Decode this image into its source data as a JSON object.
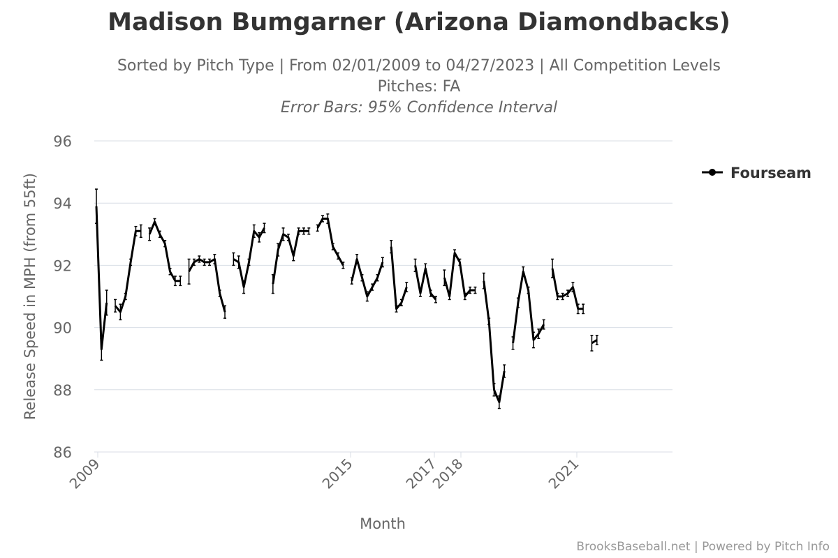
{
  "title": "Madison Bumgarner (Arizona Diamondbacks)",
  "subtitle_line1": "Sorted by Pitch Type | From 02/01/2009 to 04/27/2023 | All Competition Levels",
  "subtitle_line2": "Pitches: FA",
  "subtitle_line3": "Error Bars: 95% Confidence Interval",
  "credits": "BrooksBaseball.net | Powered by Pitch Info",
  "colors": {
    "line": "#000000",
    "grid": "#d8dee6",
    "axis_text": "#666666",
    "title": "#333333"
  },
  "chart_data": {
    "type": "line",
    "xlabel": "Month",
    "ylabel": "Release Speed in MPH (from 55ft)",
    "ylim": [
      86,
      96
    ],
    "yticks": [
      86,
      88,
      90,
      92,
      94,
      96
    ],
    "xticks": [
      "2009",
      "2015",
      "2017",
      "2018",
      "2021"
    ],
    "grid": true,
    "legend_position": "top-right",
    "series": [
      {
        "name": "Fourseam",
        "segments": [
          {
            "values": [
              [
                93.9,
                0.55
              ],
              [
                89.3,
                0.35
              ],
              [
                90.8,
                0.4
              ]
            ]
          },
          {
            "values": [
              [
                90.7,
                0.2
              ],
              [
                90.5,
                0.25
              ],
              [
                91.0,
                0.1
              ],
              [
                92.1,
                0.1
              ],
              [
                93.1,
                0.15
              ],
              [
                93.1,
                0.2
              ]
            ]
          },
          {
            "values": [
              [
                93.0,
                0.2
              ],
              [
                93.4,
                0.1
              ],
              [
                93.0,
                0.1
              ],
              [
                92.7,
                0.1
              ],
              [
                91.8,
                0.1
              ],
              [
                91.5,
                0.15
              ],
              [
                91.5,
                0.15
              ]
            ]
          },
          {
            "values": [
              [
                91.8,
                0.4
              ],
              [
                92.1,
                0.1
              ],
              [
                92.2,
                0.1
              ],
              [
                92.1,
                0.1
              ],
              [
                92.1,
                0.1
              ],
              [
                92.2,
                0.15
              ],
              [
                91.1,
                0.1
              ],
              [
                90.5,
                0.2
              ]
            ]
          },
          {
            "values": [
              [
                92.2,
                0.2
              ],
              [
                92.1,
                0.2
              ],
              [
                91.3,
                0.2
              ],
              [
                92.1,
                0.1
              ],
              [
                93.1,
                0.2
              ],
              [
                92.9,
                0.15
              ],
              [
                93.2,
                0.15
              ]
            ]
          },
          {
            "values": [
              [
                91.4,
                0.3
              ],
              [
                92.5,
                0.2
              ],
              [
                93.0,
                0.2
              ],
              [
                92.9,
                0.1
              ],
              [
                92.3,
                0.15
              ],
              [
                93.1,
                0.1
              ],
              [
                93.1,
                0.1
              ],
              [
                93.1,
                0.1
              ]
            ]
          },
          {
            "values": [
              [
                93.2,
                0.1
              ],
              [
                93.5,
                0.1
              ],
              [
                93.5,
                0.15
              ],
              [
                92.6,
                0.1
              ],
              [
                92.3,
                0.1
              ],
              [
                92.0,
                0.1
              ]
            ]
          },
          {
            "values": [
              [
                91.5,
                0.1
              ],
              [
                92.2,
                0.15
              ],
              [
                91.6,
                0.1
              ],
              [
                91.0,
                0.15
              ],
              [
                91.3,
                0.1
              ],
              [
                91.6,
                0.1
              ],
              [
                92.1,
                0.15
              ]
            ]
          },
          {
            "values": [
              [
                92.6,
                0.2
              ],
              [
                90.6,
                0.1
              ],
              [
                90.8,
                0.1
              ],
              [
                91.3,
                0.15
              ]
            ]
          },
          {
            "values": [
              [
                92.0,
                0.2
              ],
              [
                91.1,
                0.1
              ],
              [
                91.9,
                0.15
              ],
              [
                91.1,
                0.1
              ],
              [
                90.9,
                0.1
              ]
            ]
          },
          {
            "values": [
              [
                91.6,
                0.25
              ],
              [
                91.0,
                0.1
              ],
              [
                92.4,
                0.1
              ],
              [
                92.1,
                0.1
              ],
              [
                91.0,
                0.1
              ],
              [
                91.2,
                0.1
              ],
              [
                91.2,
                0.1
              ]
            ]
          },
          {
            "values": [
              [
                91.5,
                0.25
              ],
              [
                90.2,
                0.1
              ],
              [
                88.0,
                0.2
              ],
              [
                87.6,
                0.2
              ],
              [
                88.6,
                0.2
              ]
            ]
          },
          {
            "values": [
              [
                89.5,
                0.2
              ],
              [
                90.8,
                0.15
              ],
              [
                91.8,
                0.15
              ],
              [
                91.2,
                0.1
              ],
              [
                89.6,
                0.25
              ],
              [
                89.8,
                0.15
              ],
              [
                90.1,
                0.15
              ]
            ]
          },
          {
            "values": [
              [
                91.9,
                0.3
              ],
              [
                91.0,
                0.1
              ],
              [
                91.0,
                0.1
              ],
              [
                91.1,
                0.1
              ],
              [
                91.3,
                0.15
              ],
              [
                90.6,
                0.15
              ],
              [
                90.6,
                0.15
              ]
            ]
          },
          {
            "values": [
              [
                89.5,
                0.25
              ],
              [
                89.6,
                0.15
              ]
            ]
          }
        ]
      }
    ]
  }
}
